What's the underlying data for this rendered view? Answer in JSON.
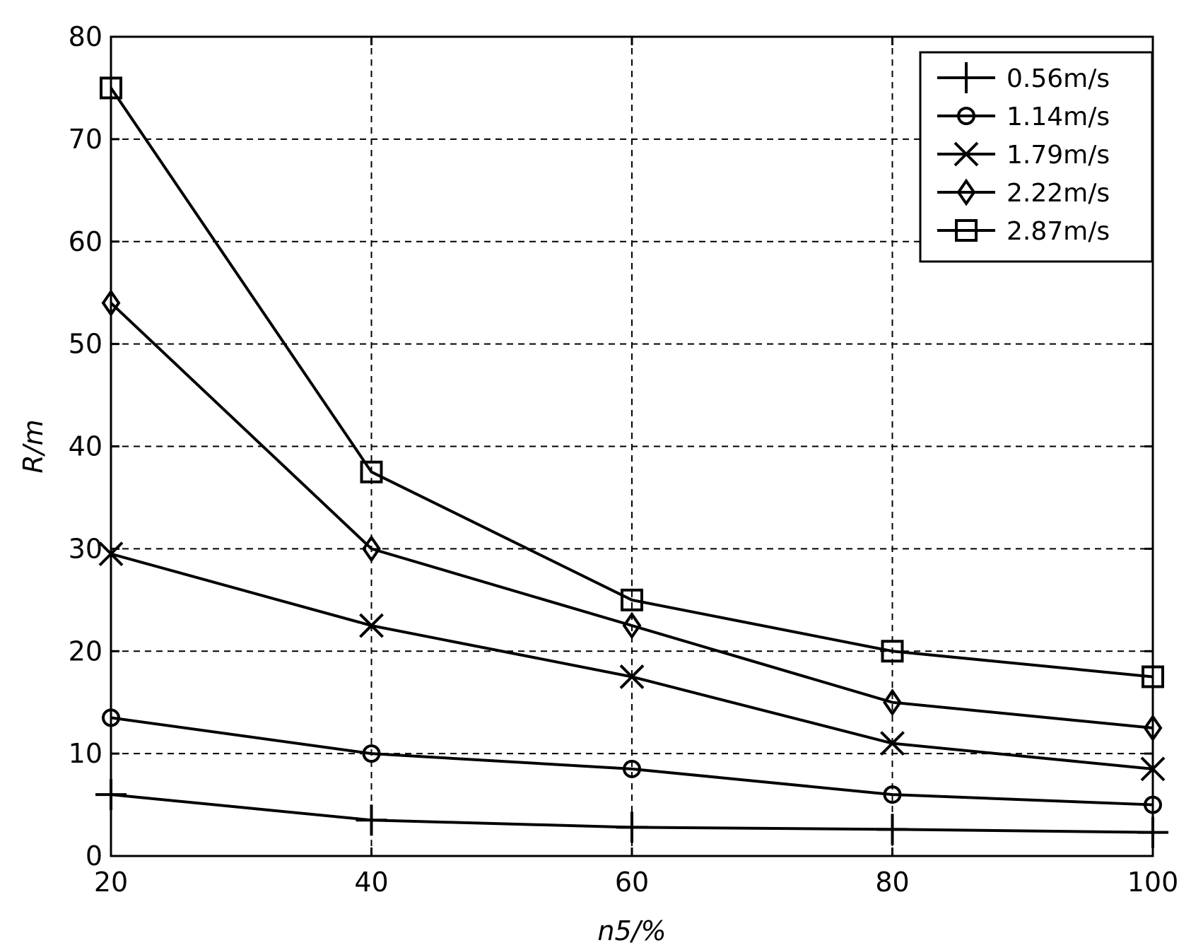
{
  "chart_data": {
    "type": "line",
    "xlabel": "n5/%",
    "ylabel": "R/m",
    "xlim": [
      20,
      100
    ],
    "ylim": [
      0,
      80
    ],
    "x_ticks": [
      "20",
      "40",
      "60",
      "80",
      "100"
    ],
    "y_ticks": [
      "0",
      "10",
      "20",
      "30",
      "40",
      "50",
      "60",
      "70",
      "80"
    ],
    "grid": true,
    "legend_position": "top-right",
    "x": [
      20,
      40,
      60,
      80,
      100
    ],
    "series": [
      {
        "name": "0.56m/s",
        "marker": "plus",
        "values": [
          6,
          3.5,
          2.8,
          2.6,
          2.3
        ]
      },
      {
        "name": "1.14m/s",
        "marker": "circle",
        "values": [
          13.5,
          10,
          8.5,
          6,
          5
        ]
      },
      {
        "name": "1.79m/s",
        "marker": "x",
        "values": [
          29.5,
          22.5,
          17.5,
          11,
          8.5
        ]
      },
      {
        "name": "2.22m/s",
        "marker": "diamond",
        "values": [
          54,
          30,
          22.5,
          15,
          12.5
        ]
      },
      {
        "name": "2.87m/s",
        "marker": "square",
        "values": [
          75,
          37.5,
          25,
          20,
          17.5
        ]
      }
    ]
  }
}
